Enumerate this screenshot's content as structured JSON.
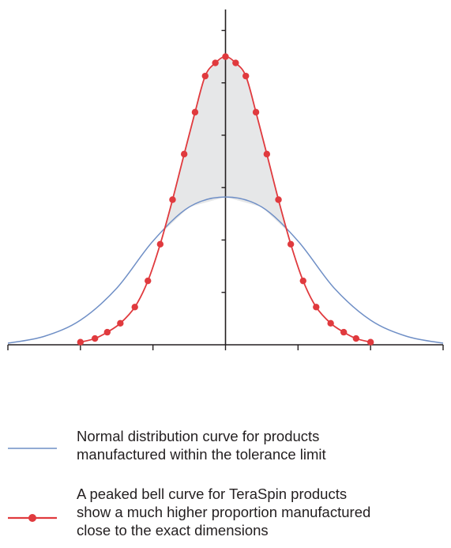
{
  "chart_data": {
    "type": "line",
    "xlim": [
      -3,
      3
    ],
    "ylim": [
      0,
      6.4
    ],
    "axes": {
      "x_ticks": [
        -3,
        -2,
        -1,
        0,
        1,
        2,
        3
      ],
      "y_ticks": [
        1,
        2,
        3,
        4,
        5,
        6
      ],
      "tick_labels_shown": false
    },
    "grid": false,
    "legend_position": "bottom",
    "shaded_region": "between peaked curve and normal curve where peaked curve is higher",
    "series": [
      {
        "name": "Normal distribution curve for products manufactured within the tolerance limit",
        "color": "#6f8fc6",
        "marker": "none",
        "x": [
          -3.0,
          -2.5,
          -2.0,
          -1.5,
          -1.0,
          -0.5,
          0.0,
          0.5,
          1.0,
          1.5,
          2.0,
          2.5,
          3.0
        ],
        "y": [
          0.03,
          0.16,
          0.47,
          1.08,
          1.98,
          2.63,
          2.82,
          2.63,
          1.98,
          1.08,
          0.47,
          0.16,
          0.03
        ]
      },
      {
        "name": "A peaked bell curve for TeraSpin products show a much higher proportion manufactured close to the exact dimensions",
        "color": "#e03a3e",
        "marker": "circle",
        "x": [
          -2.0,
          -1.8,
          -1.63,
          -1.45,
          -1.25,
          -1.07,
          -0.9,
          -0.73,
          -0.57,
          -0.42,
          -0.28,
          -0.14,
          0.0,
          0.14,
          0.28,
          0.42,
          0.57,
          0.73,
          0.9,
          1.07,
          1.25,
          1.45,
          1.63,
          1.8,
          2.0
        ],
        "y": [
          0.05,
          0.12,
          0.24,
          0.41,
          0.72,
          1.22,
          1.92,
          2.77,
          3.64,
          4.44,
          5.13,
          5.38,
          5.5,
          5.38,
          5.13,
          4.44,
          3.64,
          2.77,
          1.92,
          1.22,
          0.72,
          0.41,
          0.24,
          0.12,
          0.05
        ]
      }
    ]
  },
  "legend": {
    "normal": {
      "color": "#6f8fc6",
      "lines": [
        "Normal distribution curve for products",
        "manufactured within the tolerance limit"
      ]
    },
    "peaked": {
      "color": "#e03a3e",
      "lines": [
        "A peaked bell curve for TeraSpin products",
        "show a much higher proportion manufactured",
        "close to the exact dimensions"
      ]
    }
  }
}
